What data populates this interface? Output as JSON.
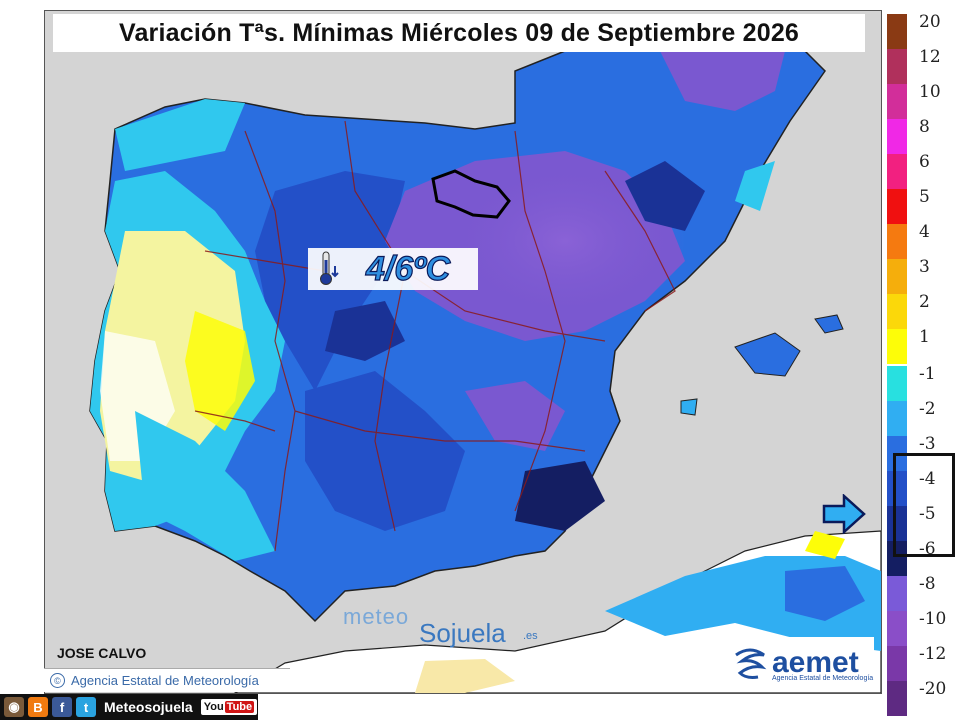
{
  "title": "Variación Tªs. Mínimas Miércoles 09 de Septiembre 2026",
  "highlight_value": "4/6ºC",
  "author": "JOSE CALVO",
  "agency_credit": "Agencia Estatal de Meteorología",
  "agency_credit_symbol": "©",
  "watermark": {
    "part1": "meteo",
    "part2": "Sojuela",
    "suffix": ".es"
  },
  "social": {
    "handle": "Meteosojuela",
    "youtube_you": "You",
    "youtube_tube": "Tube",
    "blogger_glyph": "B",
    "facebook_glyph": "f",
    "twitter_glyph": "t"
  },
  "logo": {
    "name": "aemet",
    "subtitle": "Agencia Estatal de Meteorología"
  },
  "legend": {
    "positive": [
      {
        "label": "20",
        "color": "#8a3a14"
      },
      {
        "label": "12",
        "color": "#b0305c"
      },
      {
        "label": "10",
        "color": "#d22e9a"
      },
      {
        "label": "8",
        "color": "#f028e6"
      },
      {
        "label": "6",
        "color": "#f22080"
      },
      {
        "label": "5",
        "color": "#f01010"
      },
      {
        "label": "4",
        "color": "#f57a10"
      },
      {
        "label": "3",
        "color": "#f5ae0c"
      },
      {
        "label": "2",
        "color": "#fbd80a"
      },
      {
        "label": "1",
        "color": "#fdfd08"
      }
    ],
    "negative": [
      {
        "label": "-1",
        "color": "#28e0e0"
      },
      {
        "label": "-2",
        "color": "#30aef2"
      },
      {
        "label": "-3",
        "color": "#2a6ee0"
      },
      {
        "label": "-4",
        "color": "#2350c8"
      },
      {
        "label": "-5",
        "color": "#1a3296"
      },
      {
        "label": "-6",
        "color": "#141e62"
      },
      {
        "label": "-8",
        "color": "#7a5ad8"
      },
      {
        "label": "-10",
        "color": "#8a4ec8"
      },
      {
        "label": "-12",
        "color": "#7a38a8"
      },
      {
        "label": "-20",
        "color": "#5e2a82"
      }
    ],
    "highlighted_range": [
      "-4",
      "-6"
    ]
  }
}
